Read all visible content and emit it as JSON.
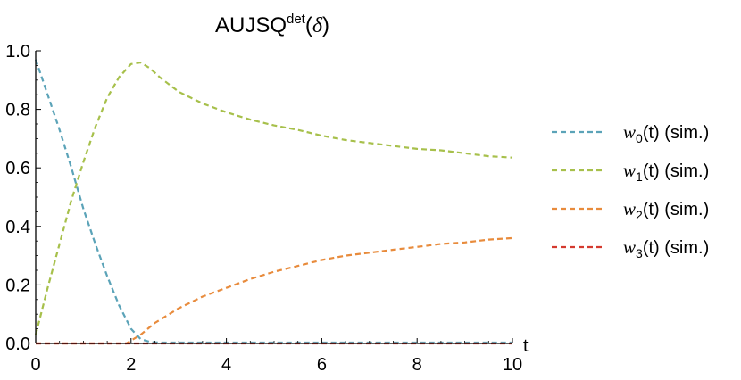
{
  "chart_data": {
    "type": "line",
    "title": {
      "base": "AUJSQ",
      "superscript": "det",
      "open_paren": "(",
      "symbol": "δ",
      "close_paren": ")"
    },
    "xlabel": "t",
    "ylabel": "",
    "xlim": [
      0,
      10
    ],
    "ylim": [
      0,
      1
    ],
    "xticks": [
      0,
      2,
      4,
      6,
      8,
      10
    ],
    "yticks": [
      0.0,
      0.2,
      0.4,
      0.6,
      0.8,
      1.0
    ],
    "xtick_labels": [
      "0",
      "2",
      "4",
      "6",
      "8",
      "10"
    ],
    "ytick_labels": [
      "0.0",
      "0.2",
      "0.4",
      "0.6",
      "0.8",
      "1.0"
    ],
    "grid": false,
    "legend_position": "right",
    "line_style": "dashed",
    "series": [
      {
        "name": "w0(t) (sim.)",
        "label_var": "w",
        "label_sub": "0",
        "label_rest": "(t) (sim.)",
        "color": "#5ba3b8",
        "x": [
          0,
          0.25,
          0.5,
          0.75,
          1.0,
          1.25,
          1.5,
          1.75,
          2.0,
          2.2,
          2.4,
          2.6,
          3,
          4,
          5,
          6,
          7,
          8,
          9,
          10
        ],
        "y": [
          0.97,
          0.85,
          0.73,
          0.6,
          0.46,
          0.34,
          0.23,
          0.13,
          0.05,
          0.015,
          0.005,
          0.003,
          0.003,
          0.003,
          0.003,
          0.003,
          0.003,
          0.003,
          0.003,
          0.003
        ]
      },
      {
        "name": "w1(t) (sim.)",
        "label_var": "w",
        "label_sub": "1",
        "label_rest": "(t) (sim.)",
        "color": "#a7c04b",
        "x": [
          0,
          0.25,
          0.5,
          0.75,
          1.0,
          1.25,
          1.5,
          1.75,
          2.0,
          2.2,
          2.4,
          2.6,
          3,
          3.5,
          4,
          4.5,
          5,
          5.5,
          6,
          6.5,
          7,
          7.5,
          8,
          8.5,
          9,
          9.5,
          10
        ],
        "y": [
          0.03,
          0.19,
          0.34,
          0.49,
          0.62,
          0.74,
          0.84,
          0.91,
          0.955,
          0.96,
          0.94,
          0.91,
          0.86,
          0.82,
          0.79,
          0.765,
          0.745,
          0.73,
          0.71,
          0.695,
          0.685,
          0.675,
          0.665,
          0.66,
          0.65,
          0.64,
          0.635
        ]
      },
      {
        "name": "w2(t) (sim.)",
        "label_var": "w",
        "label_sub": "2",
        "label_rest": "(t) (sim.)",
        "color": "#e88b3c",
        "x": [
          0,
          1.9,
          2.0,
          2.2,
          2.5,
          3,
          3.5,
          4,
          4.5,
          5,
          5.5,
          6,
          6.5,
          7,
          7.5,
          8,
          8.5,
          9,
          9.5,
          10
        ],
        "y": [
          0.0,
          0.0,
          0.01,
          0.03,
          0.07,
          0.12,
          0.16,
          0.19,
          0.22,
          0.245,
          0.265,
          0.285,
          0.3,
          0.31,
          0.32,
          0.33,
          0.34,
          0.345,
          0.355,
          0.36
        ]
      },
      {
        "name": "w3(t) (sim.)",
        "label_var": "w",
        "label_sub": "3",
        "label_rest": "(t) (sim.)",
        "color": "#d43a2f",
        "x": [
          0,
          10
        ],
        "y": [
          0.0,
          0.0
        ]
      }
    ]
  }
}
